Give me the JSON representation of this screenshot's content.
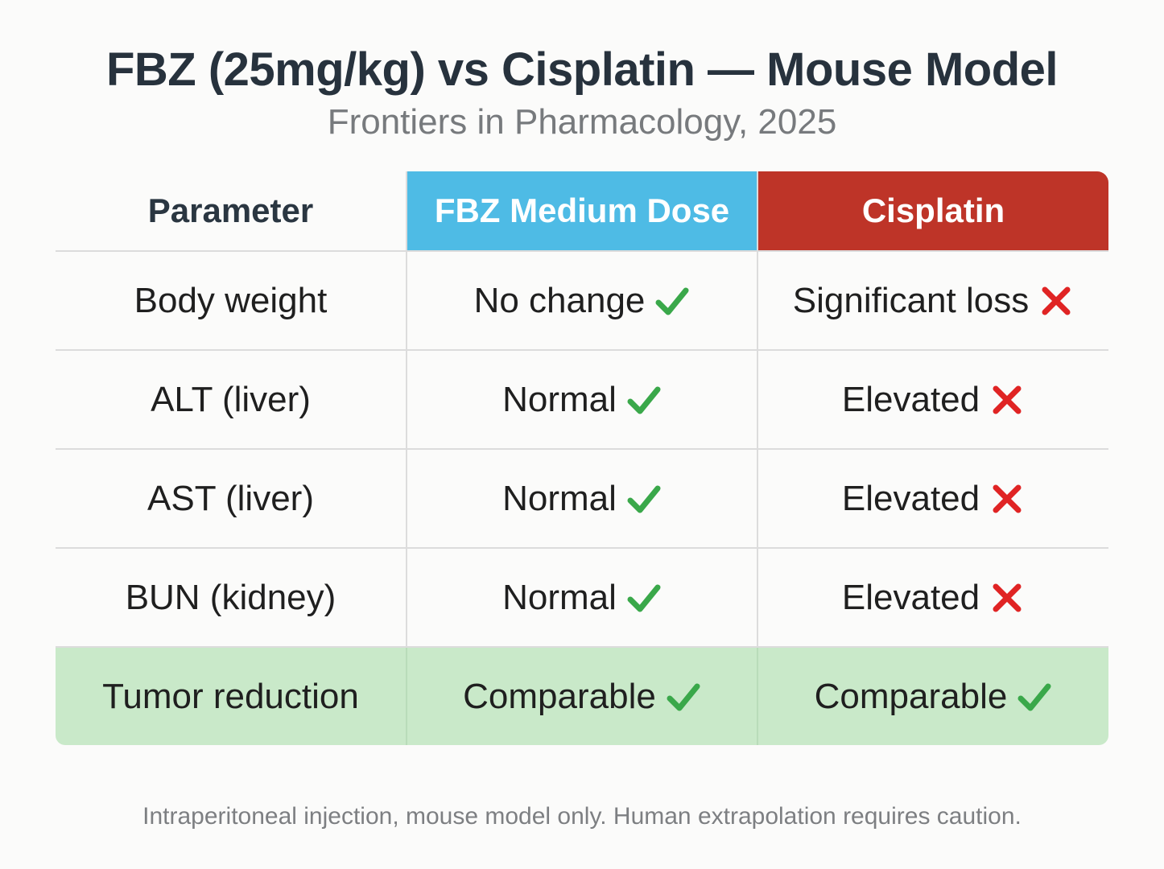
{
  "title": "FBZ (25mg/kg) vs Cisplatin — Mouse Model",
  "subtitle": "Frontiers in Pharmacology, 2025",
  "table": {
    "headers": {
      "parameter": "Parameter",
      "fbz": "FBZ Medium Dose",
      "cisplatin": "Cisplatin"
    },
    "header_colors": {
      "fbz": "#4ebbe5",
      "cisplatin": "#be3428"
    },
    "rows": [
      {
        "parameter": "Body weight",
        "fbz": "No change",
        "fbz_icon": "check-icon",
        "cisplatin": "Significant loss",
        "cisplatin_icon": "cross-icon"
      },
      {
        "parameter": "ALT (liver)",
        "fbz": "Normal",
        "fbz_icon": "check-icon",
        "cisplatin": "Elevated",
        "cisplatin_icon": "cross-icon"
      },
      {
        "parameter": "AST (liver)",
        "fbz": "Normal",
        "fbz_icon": "check-icon",
        "cisplatin": "Elevated",
        "cisplatin_icon": "cross-icon"
      },
      {
        "parameter": "BUN (kidney)",
        "fbz": "Normal",
        "fbz_icon": "check-icon",
        "cisplatin": "Elevated",
        "cisplatin_icon": "cross-icon"
      },
      {
        "parameter": "Tumor reduction",
        "fbz": "Comparable",
        "fbz_icon": "check-icon",
        "cisplatin": "Comparable",
        "cisplatin_icon": "check-icon"
      }
    ],
    "highlight_row_color": "#c9e9c9",
    "check_color": "#3aa84a",
    "cross_color": "#e02424"
  },
  "footnote": "Intraperitoneal injection, mouse model only. Human extrapolation requires caution."
}
